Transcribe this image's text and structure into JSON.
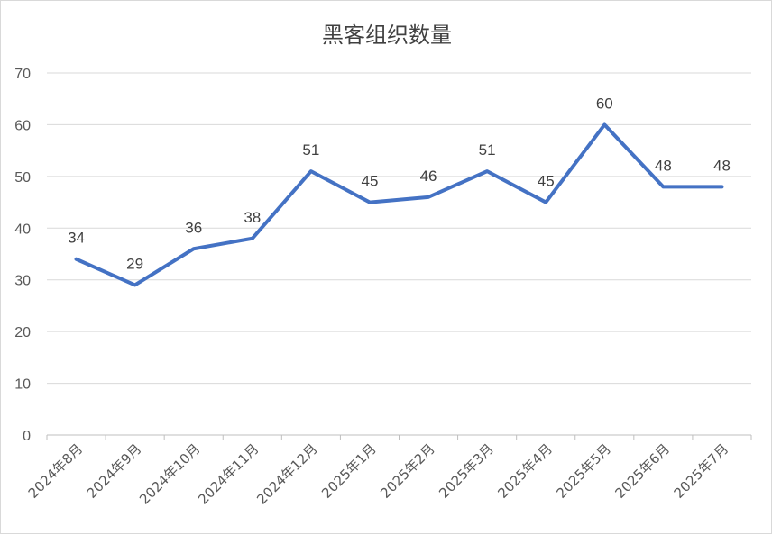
{
  "chart_data": {
    "type": "line",
    "title": "黑客组织数量",
    "xlabel": "",
    "ylabel": "",
    "categories": [
      "2024年8月",
      "2024年9月",
      "2024年10月",
      "2024年11月",
      "2024年12月",
      "2025年1月",
      "2025年2月",
      "2025年3月",
      "2025年4月",
      "2025年5月",
      "2025年6月",
      "2025年7月"
    ],
    "series": [
      {
        "values": [
          34,
          29,
          36,
          38,
          51,
          45,
          46,
          51,
          45,
          60,
          48,
          48
        ],
        "color": "#4472c4"
      }
    ],
    "ylim": [
      0,
      70
    ],
    "yticks": [
      0,
      10,
      20,
      30,
      40,
      50,
      60,
      70
    ],
    "grid": true,
    "data_labels": true,
    "legend": "none"
  }
}
